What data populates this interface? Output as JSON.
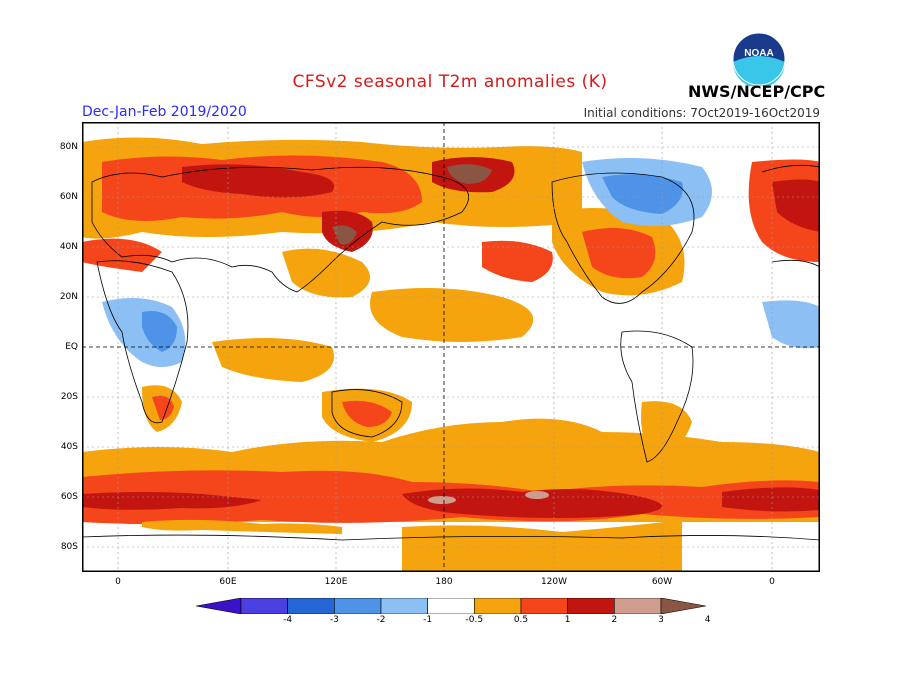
{
  "header": {
    "title": "CFSv2 seasonal T2m anomalies (K)",
    "season": "Dec-Jan-Feb 2019/2020",
    "initial_conditions": "Initial conditions: 7Oct2019-16Oct2019",
    "agency": "NWS/NCEP/CPC",
    "logo_text": "NOAA"
  },
  "axes": {
    "lat_labels": [
      "80N",
      "60N",
      "40N",
      "20N",
      "EQ",
      "20S",
      "40S",
      "60S",
      "80S"
    ],
    "lon_labels": [
      "0",
      "60E",
      "120E",
      "180",
      "120W",
      "60W",
      "0"
    ]
  },
  "colorbar": {
    "labels": [
      "-4",
      "-3",
      "-2",
      "-1",
      "-0.5",
      "0.5",
      "1",
      "2",
      "3",
      "4"
    ],
    "colors": [
      "#3a12c8",
      "#4a3fe0",
      "#2566d6",
      "#4f93e8",
      "#8cc0f5",
      "#ffffff",
      "#f5a40e",
      "#f5451a",
      "#c2150f",
      "#cf9c8e",
      "#8b5544"
    ]
  }
}
